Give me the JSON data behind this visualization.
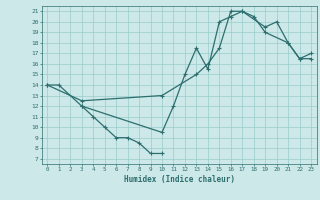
{
  "title": "",
  "xlabel": "Humidex (Indice chaleur)",
  "background_color": "#cce8e8",
  "grid_color": "#99cccc",
  "line_color": "#2d6e6e",
  "xlim": [
    -0.5,
    23.5
  ],
  "ylim": [
    6.5,
    21.5
  ],
  "xticks": [
    0,
    1,
    2,
    3,
    4,
    5,
    6,
    7,
    8,
    9,
    10,
    11,
    12,
    13,
    14,
    15,
    16,
    17,
    18,
    19,
    20,
    21,
    22,
    23
  ],
  "yticks": [
    7,
    8,
    9,
    10,
    11,
    12,
    13,
    14,
    15,
    16,
    17,
    18,
    19,
    20,
    21
  ],
  "line1_x": [
    0,
    1,
    3,
    4,
    5,
    6,
    7,
    8,
    9,
    10
  ],
  "line1_y": [
    14,
    14,
    12,
    11,
    10,
    9,
    9,
    8.5,
    7.5,
    7.5
  ],
  "line2_x": [
    3,
    10,
    11,
    12,
    13,
    14,
    15,
    16,
    17,
    19,
    20,
    21,
    22,
    23
  ],
  "line2_y": [
    12,
    9.5,
    12,
    15,
    17.5,
    15.5,
    20,
    20.5,
    21,
    19.5,
    20,
    18,
    16.5,
    16.5
  ],
  "line3_x": [
    0,
    3,
    10,
    13,
    14,
    15,
    16,
    17,
    18,
    19,
    21,
    22,
    23
  ],
  "line3_y": [
    14,
    12.5,
    13,
    15,
    16,
    17.5,
    21,
    21,
    20.5,
    19,
    18,
    16.5,
    17
  ]
}
